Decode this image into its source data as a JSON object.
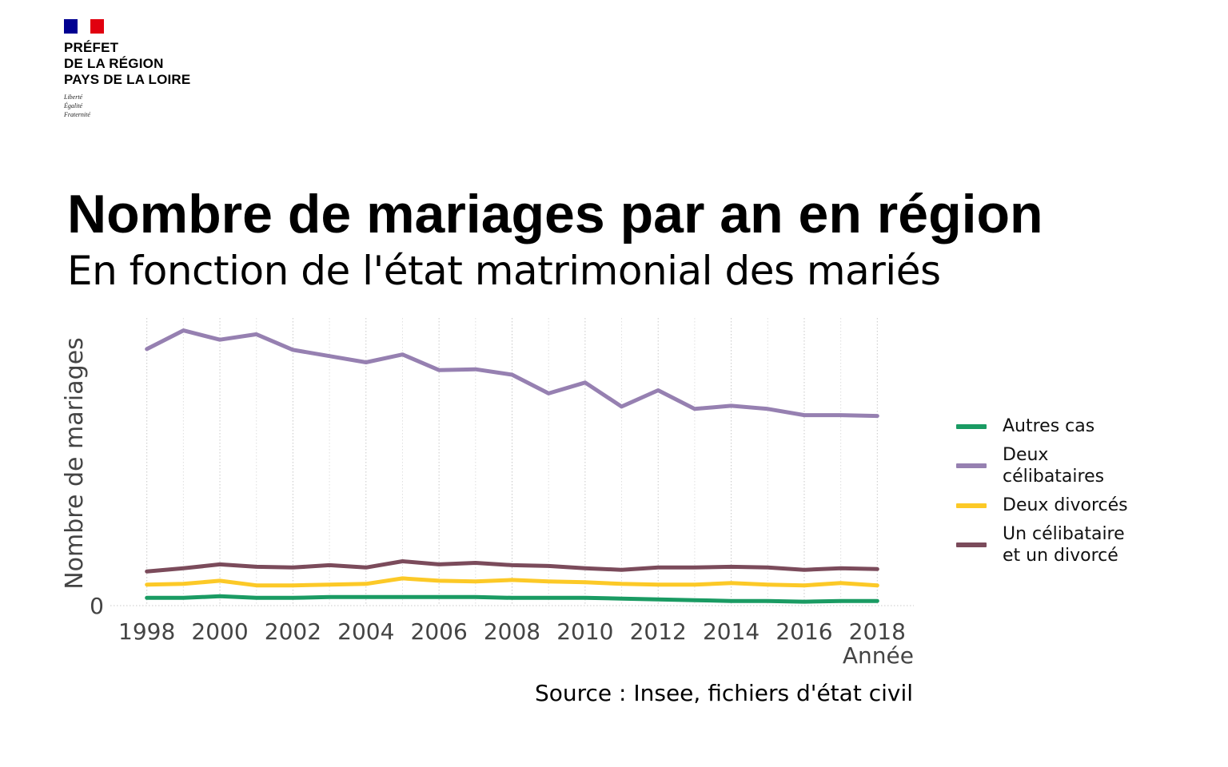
{
  "header": {
    "logo_lines": [
      "PRÉFET",
      "DE LA RÉGION",
      "PAYS DE LA LOIRE"
    ],
    "motto": [
      "Liberté",
      "Égalité",
      "Fraternité"
    ],
    "flag_colors": [
      "#000091",
      "#ffffff",
      "#e1000f"
    ]
  },
  "title": "Nombre de mariages par an en région",
  "subtitle": "En fonction de l'état matrimonial des mariés",
  "source": "Source : Insee, fichiers d'état civil",
  "chart_data": {
    "type": "line",
    "xlabel": "Année",
    "ylabel": "Nombre de mariages",
    "x": [
      1998,
      1999,
      2000,
      2001,
      2002,
      2003,
      2004,
      2005,
      2006,
      2007,
      2008,
      2009,
      2010,
      2011,
      2012,
      2013,
      2014,
      2015,
      2016,
      2017,
      2018
    ],
    "xticks": [
      1998,
      2000,
      2002,
      2004,
      2006,
      2008,
      2010,
      2012,
      2014,
      2016,
      2018
    ],
    "xlim": [
      1997,
      2019
    ],
    "yticks": [
      0
    ],
    "ylim": [
      0,
      370
    ],
    "grid": "vertical dotted",
    "legend_position": "right",
    "series": [
      {
        "name": "Autres cas",
        "color": "#1a9b63",
        "values": [
          10,
          10,
          12,
          10,
          10,
          11,
          11,
          11,
          11,
          11,
          10,
          10,
          10,
          9,
          8,
          7,
          6,
          6,
          5,
          6,
          6
        ]
      },
      {
        "name": "Deux célibataires",
        "color": "#9680b1",
        "values": [
          330,
          354,
          342,
          349,
          329,
          321,
          313,
          323,
          303,
          304,
          297,
          273,
          287,
          256,
          277,
          253,
          257,
          253,
          245,
          245,
          244
        ]
      },
      {
        "name": "Deux divorcés",
        "color": "#fcc927",
        "values": [
          27,
          28,
          32,
          26,
          26,
          27,
          28,
          35,
          32,
          31,
          33,
          31,
          30,
          28,
          27,
          27,
          29,
          27,
          26,
          29,
          26
        ]
      },
      {
        "name": "Un célibataire\net un divorcé",
        "color": "#7b4b5b",
        "values": [
          44,
          48,
          53,
          50,
          49,
          52,
          49,
          57,
          53,
          55,
          52,
          51,
          48,
          46,
          49,
          49,
          50,
          49,
          46,
          48,
          47
        ]
      }
    ]
  }
}
